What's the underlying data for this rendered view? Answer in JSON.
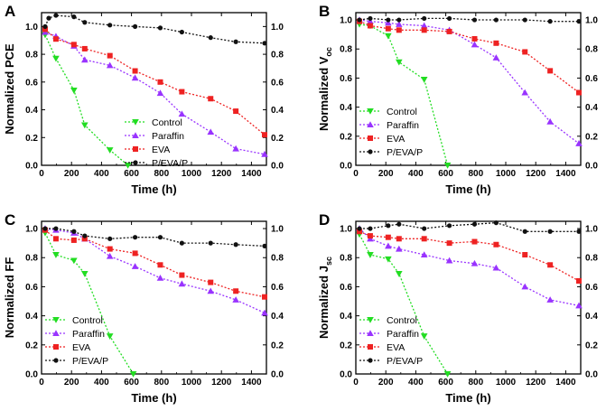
{
  "colors": {
    "Control": "#22dd22",
    "Paraffin": "#9933ff",
    "EVA": "#ee2222",
    "P/EVA/P": "#111111"
  },
  "chart_data": [
    {
      "type": "line",
      "panel": "A",
      "xlabel": "Time (h)",
      "ylabel": "Normalized PCE",
      "ylabel_sub": "",
      "xlim": [
        0,
        1500
      ],
      "ylim": [
        0,
        1.1
      ],
      "xticks": [
        0,
        200,
        400,
        600,
        800,
        1000,
        1200,
        1400
      ],
      "yticks": [
        0,
        0.2,
        0.4,
        0.6,
        0.8,
        1.0
      ],
      "legend_position": "bottom-center",
      "series": [
        {
          "name": "Control",
          "marker": "triangle-down",
          "x": [
            24,
            96,
            216,
            288,
            456,
            576
          ],
          "y": [
            0.94,
            0.77,
            0.54,
            0.29,
            0.11,
            0.0
          ]
        },
        {
          "name": "Paraffin",
          "marker": "triangle-up",
          "x": [
            24,
            96,
            216,
            288,
            456,
            624,
            792,
            936,
            1128,
            1296,
            1488
          ],
          "y": [
            0.96,
            0.93,
            0.86,
            0.76,
            0.72,
            0.63,
            0.52,
            0.37,
            0.24,
            0.12,
            0.08
          ]
        },
        {
          "name": "EVA",
          "marker": "square",
          "x": [
            24,
            96,
            216,
            288,
            456,
            624,
            792,
            936,
            1128,
            1296,
            1488
          ],
          "y": [
            0.98,
            0.91,
            0.87,
            0.84,
            0.79,
            0.68,
            0.6,
            0.53,
            0.48,
            0.39,
            0.22
          ]
        },
        {
          "name": "P/EVA/P",
          "marker": "circle",
          "x": [
            24,
            48,
            96,
            216,
            288,
            456,
            624,
            792,
            936,
            1128,
            1296,
            1488
          ],
          "y": [
            1.0,
            1.06,
            1.08,
            1.07,
            1.03,
            1.01,
            1.0,
            0.99,
            0.96,
            0.92,
            0.89,
            0.88
          ]
        }
      ]
    },
    {
      "type": "line",
      "panel": "B",
      "xlabel": "Time (h)",
      "ylabel": "Normalized V",
      "ylabel_sub": "oc",
      "xlim": [
        0,
        1500
      ],
      "ylim": [
        0,
        1.05
      ],
      "xticks": [
        0,
        200,
        400,
        600,
        800,
        1000,
        1200,
        1400
      ],
      "yticks": [
        0,
        0.2,
        0.4,
        0.6,
        0.8,
        1.0
      ],
      "legend_position": "bottom-left",
      "series": [
        {
          "name": "Control",
          "marker": "triangle-down",
          "x": [
            24,
            96,
            216,
            288,
            456,
            612
          ],
          "y": [
            0.97,
            0.96,
            0.89,
            0.71,
            0.59,
            0.0
          ]
        },
        {
          "name": "Paraffin",
          "marker": "triangle-up",
          "x": [
            24,
            96,
            216,
            288,
            456,
            624,
            792,
            936,
            1128,
            1296,
            1488
          ],
          "y": [
            1.0,
            0.99,
            0.98,
            0.97,
            0.96,
            0.93,
            0.83,
            0.74,
            0.5,
            0.3,
            0.15
          ]
        },
        {
          "name": "EVA",
          "marker": "square",
          "x": [
            24,
            96,
            216,
            288,
            456,
            624,
            792,
            936,
            1128,
            1296,
            1488
          ],
          "y": [
            0.99,
            0.96,
            0.94,
            0.93,
            0.93,
            0.92,
            0.87,
            0.84,
            0.78,
            0.65,
            0.5
          ]
        },
        {
          "name": "P/EVA/P",
          "marker": "circle",
          "x": [
            24,
            96,
            216,
            288,
            456,
            624,
            792,
            936,
            1128,
            1296,
            1488
          ],
          "y": [
            1.0,
            1.01,
            1.0,
            1.0,
            1.01,
            1.01,
            1.0,
            1.0,
            1.0,
            0.99,
            0.99
          ]
        }
      ]
    },
    {
      "type": "line",
      "panel": "C",
      "xlabel": "Time (h)",
      "ylabel": "Normalized FF",
      "ylabel_sub": "",
      "xlim": [
        0,
        1500
      ],
      "ylim": [
        0,
        1.05
      ],
      "xticks": [
        0,
        200,
        400,
        600,
        800,
        1000,
        1200,
        1400
      ],
      "yticks": [
        0,
        0.2,
        0.4,
        0.6,
        0.8,
        1.0
      ],
      "legend_position": "bottom-left",
      "series": [
        {
          "name": "Control",
          "marker": "triangle-down",
          "x": [
            24,
            96,
            216,
            288,
            456,
            612
          ],
          "y": [
            0.97,
            0.82,
            0.78,
            0.69,
            0.26,
            0.0
          ]
        },
        {
          "name": "Paraffin",
          "marker": "triangle-up",
          "x": [
            24,
            96,
            216,
            288,
            456,
            624,
            792,
            936,
            1128,
            1296,
            1488
          ],
          "y": [
            1.0,
            0.99,
            0.97,
            0.93,
            0.81,
            0.74,
            0.66,
            0.62,
            0.57,
            0.51,
            0.42
          ]
        },
        {
          "name": "EVA",
          "marker": "square",
          "x": [
            24,
            96,
            216,
            288,
            456,
            624,
            792,
            936,
            1128,
            1296,
            1488
          ],
          "y": [
            0.99,
            0.93,
            0.92,
            0.93,
            0.86,
            0.83,
            0.75,
            0.68,
            0.63,
            0.57,
            0.53
          ]
        },
        {
          "name": "P/EVA/P",
          "marker": "circle",
          "x": [
            24,
            96,
            216,
            288,
            456,
            624,
            792,
            936,
            1128,
            1296,
            1488
          ],
          "y": [
            1.0,
            1.0,
            0.98,
            0.95,
            0.93,
            0.94,
            0.94,
            0.9,
            0.9,
            0.89,
            0.88
          ]
        }
      ]
    },
    {
      "type": "line",
      "panel": "D",
      "xlabel": "Time (h)",
      "ylabel": "Normalized J",
      "ylabel_sub": "sc",
      "xlim": [
        0,
        1500
      ],
      "ylim": [
        0,
        1.05
      ],
      "xticks": [
        0,
        200,
        400,
        600,
        800,
        1000,
        1200,
        1400
      ],
      "yticks": [
        0,
        0.2,
        0.4,
        0.6,
        0.8,
        1.0
      ],
      "legend_position": "bottom-left",
      "series": [
        {
          "name": "Control",
          "marker": "triangle-down",
          "x": [
            24,
            96,
            216,
            288,
            456,
            612
          ],
          "y": [
            0.96,
            0.82,
            0.79,
            0.69,
            0.26,
            0.0
          ]
        },
        {
          "name": "Paraffin",
          "marker": "triangle-up",
          "x": [
            24,
            96,
            216,
            288,
            456,
            624,
            792,
            936,
            1128,
            1296,
            1488
          ],
          "y": [
            1.0,
            0.93,
            0.88,
            0.86,
            0.82,
            0.78,
            0.76,
            0.73,
            0.6,
            0.51,
            0.47
          ]
        },
        {
          "name": "EVA",
          "marker": "square",
          "x": [
            24,
            96,
            216,
            288,
            456,
            624,
            792,
            936,
            1128,
            1296,
            1488
          ],
          "y": [
            0.98,
            0.95,
            0.94,
            0.93,
            0.93,
            0.9,
            0.91,
            0.89,
            0.82,
            0.75,
            0.64
          ]
        },
        {
          "name": "P/EVA/P",
          "marker": "circle",
          "x": [
            24,
            96,
            216,
            288,
            456,
            624,
            792,
            936,
            1128,
            1296,
            1488
          ],
          "y": [
            1.0,
            1.0,
            1.02,
            1.03,
            1.0,
            1.02,
            1.03,
            1.04,
            0.98,
            0.98,
            0.98
          ]
        }
      ]
    }
  ]
}
